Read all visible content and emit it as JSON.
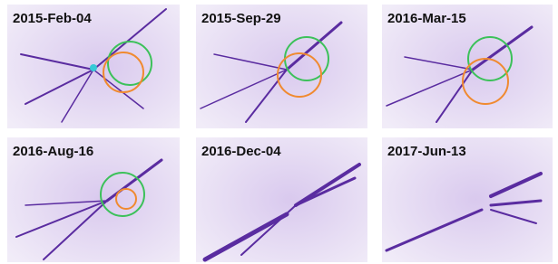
{
  "panels": [
    {
      "label": "2015-Feb-04"
    },
    {
      "label": "2015-Sep-29"
    },
    {
      "label": "2016-Mar-15"
    },
    {
      "label": "2016-Aug-16"
    },
    {
      "label": "2016-Dec-04"
    },
    {
      "label": "2017-Jun-13"
    }
  ]
}
